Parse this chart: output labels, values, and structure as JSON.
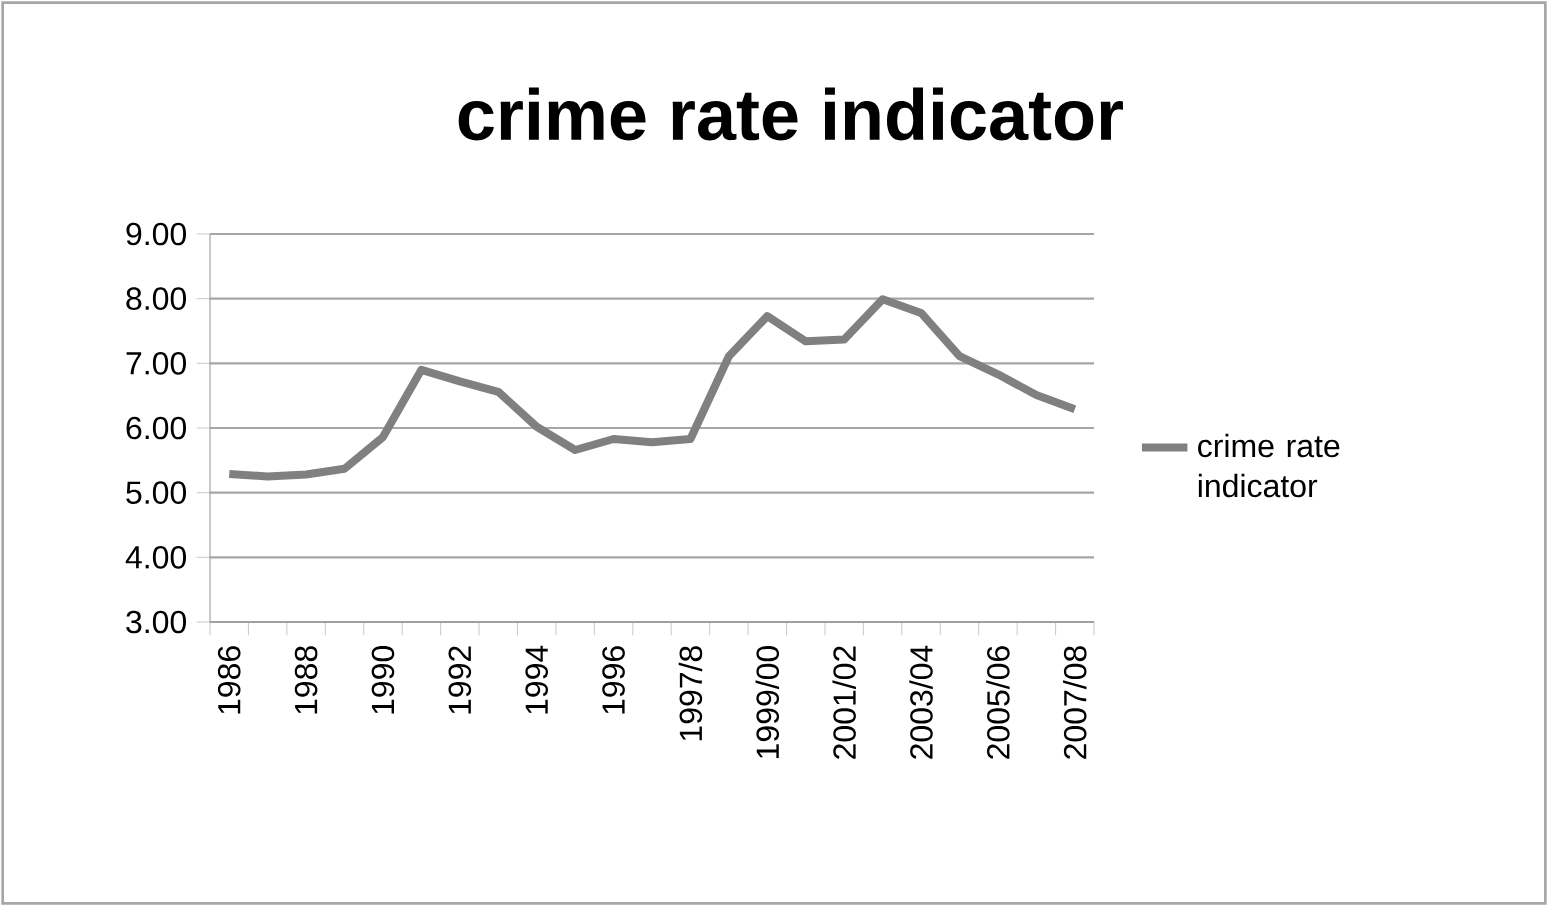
{
  "chart_data": {
    "type": "line",
    "title": "crime rate indicator",
    "categories": [
      "1986",
      null,
      "1988",
      null,
      "1990",
      null,
      "1992",
      null,
      "1994",
      null,
      "1996",
      null,
      "1997/8",
      null,
      "1999/00",
      null,
      "2001/02",
      null,
      "2003/04",
      null,
      "2005/06",
      null,
      "2007/08"
    ],
    "series": [
      {
        "name": "crime rate indicator",
        "color": "#808080",
        "values": [
          5.29,
          5.25,
          5.28,
          5.37,
          5.86,
          6.9,
          6.72,
          6.56,
          6.02,
          5.66,
          5.83,
          5.78,
          5.83,
          7.11,
          7.73,
          7.34,
          7.37,
          7.99,
          7.78,
          7.11,
          6.83,
          6.51,
          6.29
        ]
      }
    ],
    "ylim": [
      3,
      9
    ],
    "yticks": [
      {
        "value": 3,
        "label": "3.00"
      },
      {
        "value": 4,
        "label": "4.00"
      },
      {
        "value": 5,
        "label": "5.00"
      },
      {
        "value": 6,
        "label": "6.00"
      },
      {
        "value": 7,
        "label": "7.00"
      },
      {
        "value": 8,
        "label": "8.00"
      },
      {
        "value": 9,
        "label": "9.00"
      }
    ],
    "grid": "y",
    "legend": "right",
    "marker": "none",
    "line_style": "solid"
  }
}
